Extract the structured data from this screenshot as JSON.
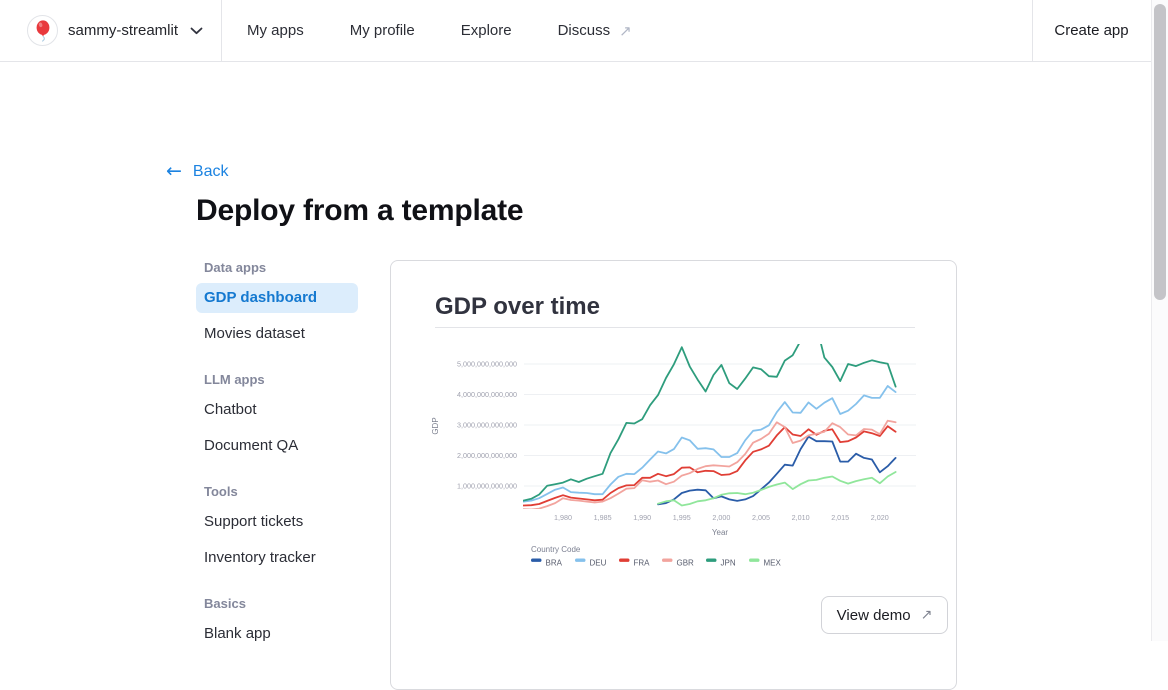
{
  "nav": {
    "account": {
      "name": "sammy-streamlit"
    },
    "items": [
      {
        "label": "My apps",
        "external": false
      },
      {
        "label": "My profile",
        "external": false
      },
      {
        "label": "Explore",
        "external": false
      },
      {
        "label": "Discuss",
        "external": true
      }
    ],
    "create_app_label": "Create app"
  },
  "page": {
    "back_label": "Back",
    "title": "Deploy from a template"
  },
  "sidebar": {
    "sections": [
      {
        "header": "Data apps",
        "items": [
          {
            "label": "GDP dashboard",
            "selected": true
          },
          {
            "label": "Movies dataset",
            "selected": false
          }
        ]
      },
      {
        "header": "LLM apps",
        "items": [
          {
            "label": "Chatbot",
            "selected": false
          },
          {
            "label": "Document QA",
            "selected": false
          }
        ]
      },
      {
        "header": "Tools",
        "items": [
          {
            "label": "Support tickets",
            "selected": false
          },
          {
            "label": "Inventory tracker",
            "selected": false
          }
        ]
      },
      {
        "header": "Basics",
        "items": [
          {
            "label": "Blank app",
            "selected": false
          }
        ]
      }
    ]
  },
  "preview_card": {
    "title": "GDP over time",
    "view_demo_label": "View demo"
  },
  "chart_data": {
    "type": "line",
    "title": "GDP over time",
    "xlabel": "Year",
    "ylabel": "GDP",
    "legend_title": "Country Code",
    "units": "GDP in current USD; series values listed in trillions",
    "x_domain": [
      1975,
      2024.6
    ],
    "y_domain_trillions": [
      0.28,
      5.6
    ],
    "grid": true,
    "legend_position": "bottom-left",
    "x_ticks": [
      1980,
      1985,
      1990,
      1995,
      2000,
      2005,
      2010,
      2015,
      2020
    ],
    "x_tick_labels": [
      "1,980",
      "1,985",
      "1,990",
      "1,995",
      "2,000",
      "2,005",
      "2,010",
      "2,015",
      "2,020"
    ],
    "y_ticks_trillions": [
      1,
      2,
      3,
      4,
      5
    ],
    "y_tick_labels": [
      "1,000,000,000,000",
      "2,000,000,000,000",
      "3,000,000,000,000",
      "4,000,000,000,000",
      "5,000,000,000,000"
    ],
    "series": [
      {
        "name": "BRA",
        "color": "#2a5ca8",
        "start_year": 1992,
        "values_trillions": [
          0.4,
          0.44,
          0.56,
          0.77,
          0.85,
          0.88,
          0.86,
          0.6,
          0.66,
          0.56,
          0.51,
          0.56,
          0.67,
          0.89,
          1.11,
          1.4,
          1.7,
          1.67,
          2.21,
          2.62,
          2.47,
          2.47,
          2.46,
          1.8,
          1.8,
          2.06,
          1.92,
          1.87,
          1.45,
          1.65,
          1.92
        ]
      },
      {
        "name": "DEU",
        "color": "#85c1ec",
        "start_year": 1975,
        "values_trillions": [
          0.49,
          0.52,
          0.6,
          0.74,
          0.88,
          0.95,
          0.8,
          0.78,
          0.77,
          0.73,
          0.73,
          1.05,
          1.3,
          1.4,
          1.39,
          1.6,
          1.87,
          2.13,
          2.07,
          2.21,
          2.59,
          2.5,
          2.22,
          2.24,
          2.2,
          1.95,
          1.95,
          2.08,
          2.5,
          2.81,
          2.85,
          2.99,
          3.42,
          3.75,
          3.41,
          3.4,
          3.74,
          3.53,
          3.73,
          3.88,
          3.36,
          3.47,
          3.69,
          3.97,
          3.89,
          3.89,
          4.28,
          4.08
        ]
      },
      {
        "name": "FRA",
        "color": "#e03e35",
        "start_year": 1975,
        "values_trillions": [
          0.36,
          0.37,
          0.41,
          0.51,
          0.61,
          0.7,
          0.62,
          0.59,
          0.56,
          0.53,
          0.55,
          0.77,
          0.93,
          1.02,
          1.03,
          1.27,
          1.27,
          1.4,
          1.32,
          1.39,
          1.6,
          1.61,
          1.45,
          1.5,
          1.49,
          1.36,
          1.38,
          1.49,
          1.84,
          2.12,
          2.2,
          2.32,
          2.66,
          2.93,
          2.69,
          2.64,
          2.86,
          2.68,
          2.81,
          2.86,
          2.44,
          2.47,
          2.59,
          2.79,
          2.73,
          2.64,
          2.96,
          2.78
        ]
      },
      {
        "name": "GBR",
        "color": "#f2a49e",
        "start_year": 1975,
        "values_trillions": [
          0.24,
          0.23,
          0.26,
          0.34,
          0.44,
          0.6,
          0.54,
          0.52,
          0.49,
          0.46,
          0.49,
          0.6,
          0.75,
          0.91,
          0.93,
          1.19,
          1.14,
          1.18,
          1.06,
          1.14,
          1.34,
          1.42,
          1.56,
          1.65,
          1.68,
          1.66,
          1.64,
          1.78,
          2.05,
          2.42,
          2.54,
          2.71,
          3.09,
          2.93,
          2.41,
          2.49,
          2.66,
          2.71,
          2.78,
          3.06,
          2.93,
          2.69,
          2.66,
          2.87,
          2.85,
          2.7,
          3.14,
          3.09
        ]
      },
      {
        "name": "JPN",
        "color": "#2e9d7d",
        "start_year": 1975,
        "values_trillions": [
          0.52,
          0.58,
          0.72,
          1.01,
          1.06,
          1.11,
          1.22,
          1.13,
          1.24,
          1.32,
          1.4,
          2.08,
          2.53,
          3.07,
          3.05,
          3.19,
          3.65,
          3.98,
          4.54,
          4.99,
          5.55,
          4.92,
          4.49,
          4.1,
          4.64,
          4.97,
          4.37,
          4.18,
          4.52,
          4.89,
          4.83,
          4.6,
          4.58,
          5.11,
          5.29,
          5.76,
          6.23,
          6.27,
          5.21,
          4.9,
          4.44,
          5.0,
          4.93,
          5.04,
          5.12,
          5.06,
          5.01,
          4.26
        ]
      },
      {
        "name": "MEX",
        "color": "#90e69b",
        "start_year": 1992,
        "values_trillions": [
          0.42,
          0.5,
          0.53,
          0.36,
          0.41,
          0.5,
          0.53,
          0.6,
          0.71,
          0.76,
          0.77,
          0.73,
          0.78,
          0.87,
          0.97,
          1.05,
          1.11,
          0.9,
          1.06,
          1.18,
          1.2,
          1.27,
          1.31,
          1.17,
          1.08,
          1.16,
          1.22,
          1.27,
          1.09,
          1.31,
          1.46
        ]
      }
    ]
  },
  "colors": {
    "accent_blue": "#1c83e1",
    "selected_item_bg": "#dcedfc",
    "selected_item_text": "#1579d0",
    "grid_line": "#eef0f3",
    "axis_text": "#a0a2af"
  }
}
